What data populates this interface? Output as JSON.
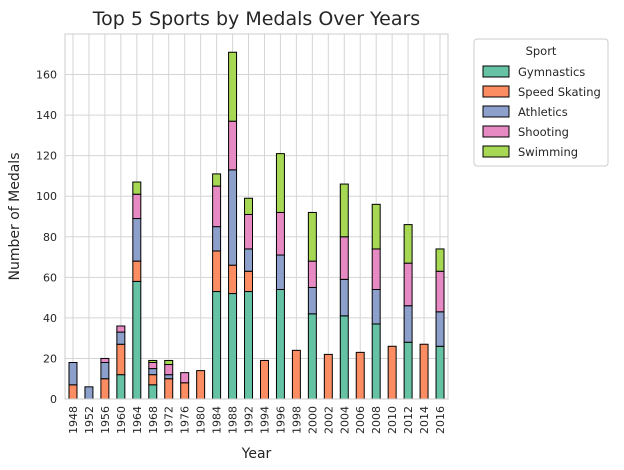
{
  "chart_data": {
    "type": "bar",
    "stacked": true,
    "title": "Top 5 Sports by Medals Over Years",
    "xlabel": "Year",
    "ylabel": "Number of Medals",
    "ylim": [
      0,
      180
    ],
    "yticks": [
      0,
      20,
      40,
      60,
      80,
      100,
      120,
      140,
      160
    ],
    "grid": true,
    "legend_title": "Sport",
    "legend_position": "outside-top-right",
    "categories": [
      "1948",
      "1952",
      "1956",
      "1960",
      "1964",
      "1968",
      "1972",
      "1976",
      "1980",
      "1984",
      "1988",
      "1992",
      "1994",
      "1996",
      "1998",
      "2000",
      "2002",
      "2004",
      "2006",
      "2008",
      "2010",
      "2012",
      "2014",
      "2016"
    ],
    "series": [
      {
        "name": "Gymnastics",
        "color": "#66c2a5",
        "values": [
          0,
          0,
          0,
          12,
          58,
          7,
          0,
          0,
          0,
          53,
          52,
          53,
          0,
          54,
          0,
          42,
          0,
          41,
          0,
          37,
          0,
          28,
          0,
          26
        ]
      },
      {
        "name": "Speed Skating",
        "color": "#fc8d62",
        "values": [
          7,
          0,
          10,
          15,
          10,
          5,
          10,
          8,
          14,
          20,
          14,
          10,
          19,
          0,
          24,
          0,
          22,
          0,
          23,
          0,
          26,
          0,
          27,
          0
        ]
      },
      {
        "name": "Athletics",
        "color": "#8da0cb",
        "values": [
          11,
          6,
          8,
          6,
          21,
          3,
          2,
          0,
          0,
          12,
          47,
          11,
          0,
          17,
          0,
          13,
          0,
          18,
          0,
          17,
          0,
          18,
          0,
          17
        ]
      },
      {
        "name": "Shooting",
        "color": "#e78ac3",
        "values": [
          0,
          0,
          2,
          3,
          12,
          3,
          5,
          5,
          0,
          20,
          24,
          17,
          0,
          21,
          0,
          13,
          0,
          21,
          0,
          20,
          0,
          21,
          0,
          20
        ]
      },
      {
        "name": "Swimming",
        "color": "#a6d854",
        "values": [
          0,
          0,
          0,
          0,
          6,
          1,
          2,
          0,
          0,
          6,
          34,
          8,
          0,
          29,
          0,
          24,
          0,
          26,
          0,
          22,
          0,
          19,
          0,
          11
        ]
      }
    ]
  }
}
